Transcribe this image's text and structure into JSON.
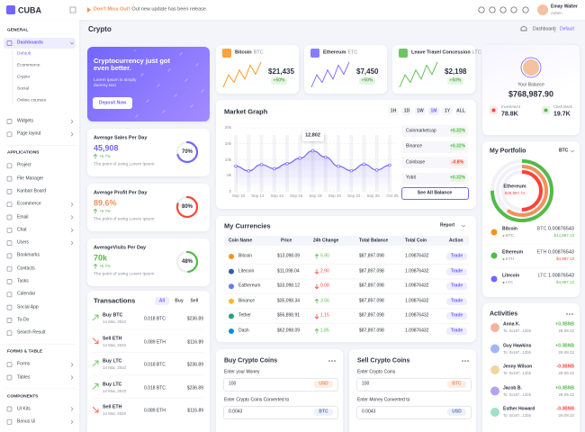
{
  "header": {
    "logo": "CUBA",
    "notice_title": "Don't Miss Out!",
    "notice_text": "Out new update has been release.",
    "user_name": "Emay Walter",
    "user_role": "Admin"
  },
  "sidebar": {
    "sections": [
      {
        "title": "GENERAL",
        "items": [
          {
            "label": "Dashboards",
            "active": true,
            "submenu": true,
            "active_child": 0,
            "children": [
              "Default",
              "Ecommerce",
              "Crypto",
              "Social",
              "Online courses"
            ]
          },
          {
            "label": "Widgets",
            "submenu": true
          },
          {
            "label": "Page layout",
            "submenu": true
          }
        ]
      },
      {
        "title": "APPLICATIONS",
        "items": [
          {
            "label": "Project"
          },
          {
            "label": "File Manager"
          },
          {
            "label": "Kanban Board"
          },
          {
            "label": "Ecommerce",
            "submenu": true
          },
          {
            "label": "Email",
            "submenu": true
          },
          {
            "label": "Chat",
            "submenu": true
          },
          {
            "label": "Users",
            "submenu": true
          },
          {
            "label": "Bookmarks"
          },
          {
            "label": "Contacts"
          },
          {
            "label": "Tasks"
          },
          {
            "label": "Calendar"
          },
          {
            "label": "Social App"
          },
          {
            "label": "To-Do"
          },
          {
            "label": "Search Result"
          }
        ]
      },
      {
        "title": "FORMS & TABLE",
        "items": [
          {
            "label": "Forms",
            "submenu": true
          },
          {
            "label": "Tables",
            "submenu": true
          }
        ]
      },
      {
        "title": "COMPONENTS",
        "items": [
          {
            "label": "UI Kits",
            "submenu": true
          },
          {
            "label": "Bonus Ui",
            "submenu": true
          }
        ]
      }
    ]
  },
  "page": {
    "title": "Crypto",
    "breadcrumb": [
      "Dashboard",
      "Default"
    ]
  },
  "banner": {
    "title": "Cryptocurrency just got even better.",
    "text": "Lorem ipsum is simply dummy text",
    "button": "Deposit Now"
  },
  "stats": [
    {
      "title": "Average Sales Per Day",
      "value": "45,908",
      "change": "+6.7%",
      "note": "The point of using Lorem Ipsum",
      "color": "#7366ff",
      "progress": {
        "value": 70,
        "label": "70%"
      }
    },
    {
      "title": "Average Profit Per Day",
      "value": "89.6%",
      "change": "+6.7%",
      "note": "The point of using Lorem Ipsum",
      "color": "#f39159",
      "ring": "#fc4438",
      "progress": {
        "value": 80,
        "label": "80%"
      }
    },
    {
      "title": "AverageVisits Per Day",
      "value": "70k",
      "change": "+6.7%",
      "note": "The point of using Lorem Ipsum",
      "color": "#54ba4a",
      "progress": {
        "value": 48,
        "label": "48%"
      }
    }
  ],
  "transactions": {
    "title": "Transactions",
    "tabs": [
      "All",
      "Buy",
      "Sell"
    ],
    "active_tab": 0,
    "rows": [
      {
        "type": "Buy BTC",
        "date": "14 Mar, 2022",
        "amount": "0.018 BTC",
        "value": "$236.89",
        "direction": "buy"
      },
      {
        "type": "Sell ETH",
        "date": "14 Mar, 2022",
        "amount": "0.089 ETH",
        "value": "$116.89",
        "direction": "sell"
      },
      {
        "type": "Buy LTC",
        "date": "14 Mar, 2022",
        "amount": "0.018 BTC",
        "value": "$236.89",
        "direction": "buy"
      },
      {
        "type": "Buy LTC",
        "date": "14 Mar, 2022",
        "amount": "0.018 BTC",
        "value": "$236.89",
        "direction": "buy"
      },
      {
        "type": "Sell ETH",
        "date": "14 Mar, 2022",
        "amount": "0.089 ETH",
        "value": "$116.89",
        "direction": "sell"
      }
    ]
  },
  "coins": [
    {
      "name": "Bitcoin",
      "ticker": "BTC",
      "value": "$21,435",
      "change": "+50%",
      "color": "#f7931a"
    },
    {
      "name": "Ethereum",
      "ticker": "ETC",
      "value": "$7,450",
      "change": "+50%",
      "color": "#7366ff"
    },
    {
      "name": "Leave Travel Concession",
      "ticker": "LTC",
      "value": "$2,198",
      "change": "+50%",
      "color": "#54ba4a"
    }
  ],
  "market": {
    "title": "Market Graph",
    "ranges": [
      "1H",
      "1D",
      "1W",
      "1M",
      "1Y",
      "ALL"
    ],
    "active_range": 3,
    "ylim": [
      0,
      20000
    ],
    "yticks": [
      {
        "value": 20000,
        "label": "20k"
      },
      {
        "value": 15000,
        "label": "15k"
      },
      {
        "value": 10000,
        "label": "10k"
      },
      {
        "value": 5000,
        "label": "5k"
      },
      0
    ],
    "xlabels": [
      "Sep 10",
      "Sep 12",
      "Sep 14",
      "Sep 16",
      "Sep 18",
      "Sep 20",
      "Sep 22",
      "Sep 25",
      "Oct 25"
    ],
    "values": [
      8000,
      6500,
      8500,
      7200,
      8800,
      10500,
      12802,
      10800,
      8000,
      6600,
      8600,
      6800,
      8300
    ],
    "tooltip_index": 6,
    "tooltip": "12,802",
    "exchanges": [
      {
        "name": "Coinmarketcap",
        "change": "+0.32%",
        "direction": "up"
      },
      {
        "name": "Binance",
        "change": "+0.32%",
        "direction": "up"
      },
      {
        "name": "Coinbase",
        "change": "-0.8%",
        "direction": "down"
      },
      {
        "name": "Yobit",
        "change": "+0.32%",
        "direction": "up"
      }
    ],
    "button": "See All Balance"
  },
  "currencies": {
    "title": "My Currencies",
    "dropdown": "Report",
    "columns": [
      "Coin Name",
      "Price",
      "24h Change",
      "Total Balance",
      "Total Coin",
      "Action"
    ],
    "rows": [
      {
        "name": "Bitcoin",
        "price": "$13,098.09",
        "change": "5.90",
        "direction": "up",
        "balance": "$87,897.098",
        "coins": "1.09876432",
        "action": "Trade",
        "color": "#f7931a"
      },
      {
        "name": "Litecoin",
        "price": "$11,098.04",
        "change": "2.90",
        "direction": "down",
        "balance": "$87,897.098",
        "coins": "1.09876432",
        "action": "Trade",
        "color": "#345d9d"
      },
      {
        "name": "Eathereum",
        "price": "$33,098.12",
        "change": "0.08",
        "direction": "down",
        "balance": "$87,897.098",
        "coins": "1.09876432",
        "action": "Trade",
        "color": "#627eea"
      },
      {
        "name": "Binance",
        "price": "$35,098.34",
        "change": "3.56",
        "direction": "up",
        "balance": "$87,897.098",
        "coins": "1.09876432",
        "action": "Trade",
        "color": "#f3ba2f"
      },
      {
        "name": "Tether",
        "price": "$56,898.91",
        "change": "1.15",
        "direction": "down",
        "balance": "$87,897.098",
        "coins": "1.09876432",
        "action": "Trade",
        "color": "#26a17b"
      },
      {
        "name": "Dash",
        "price": "$62,098.09",
        "change": "1.85",
        "direction": "up",
        "balance": "$87,897.098",
        "coins": "1.09876432",
        "action": "Trade",
        "color": "#008ce7"
      }
    ]
  },
  "buy": {
    "title": "Buy Crypto Coins",
    "label1": "Enter your Money",
    "input1": "100",
    "unit1": "USD",
    "label2": "Enter Crypto Coins Converted to",
    "input2": "0.0043",
    "unit2": "BTC"
  },
  "sell": {
    "title": "Sell Crypto Coins",
    "label1": "Enter Crypto Coins",
    "input1": "100",
    "unit1": "BTC",
    "label2": "Enter Money Converted to",
    "input2": "0.0043",
    "unit2": "USD"
  },
  "balance": {
    "label": "Your Balance",
    "value": "$768,987.90",
    "investment_label": "Investment",
    "investment": "78.8K",
    "cashback_label": "Cash Back",
    "cashback": "19.7K"
  },
  "portfolio": {
    "title": "My Portfolio",
    "dropdown": "BTC",
    "center_name": "Ethereum",
    "center_value": "$49,987.74",
    "items": [
      {
        "name": "Bitcoin",
        "ticker": "BTC",
        "amount": "0.00876543",
        "value": "$14,987.13",
        "direction": "up",
        "color": "#f7931a"
      },
      {
        "name": "Ethereum",
        "ticker": "ETH",
        "amount": "0.00876543",
        "value": "$4,987.13",
        "direction": "down",
        "color": "#54ba4a"
      },
      {
        "name": "Litecoin",
        "ticker": "LTC",
        "amount": "1.00876543",
        "value": "$4,987.13",
        "direction": "up",
        "color": "#7366ff"
      }
    ]
  },
  "activities": {
    "title": "Activities",
    "rows": [
      {
        "name": "Anna K.",
        "to": "To: 0x187...12bb",
        "amount": "+0.3BNB",
        "date": "29.09.22",
        "direction": "up",
        "color": "#f3b3a0"
      },
      {
        "name": "Guy Hawkins",
        "to": "To: 0x187...12bb",
        "amount": "+0.3BNB",
        "date": "29.09.22",
        "direction": "up",
        "color": "#a0b8f3"
      },
      {
        "name": "Jenny Wilson",
        "to": "To: 0x187...12bb",
        "amount": "-0.3BNB",
        "date": "29.09.22",
        "direction": "down",
        "color": "#f3d4a0"
      },
      {
        "name": "Jacob B.",
        "to": "To: 0x187...12bb",
        "amount": "+0.3BNB",
        "date": "29.09.22",
        "direction": "up",
        "color": "#b8a0f3"
      },
      {
        "name": "Esther Howard",
        "to": "To: 0x187...12bb",
        "amount": "-0.3BNB",
        "date": "29.09.22",
        "direction": "down",
        "color": "#a0e0c8"
      }
    ]
  }
}
